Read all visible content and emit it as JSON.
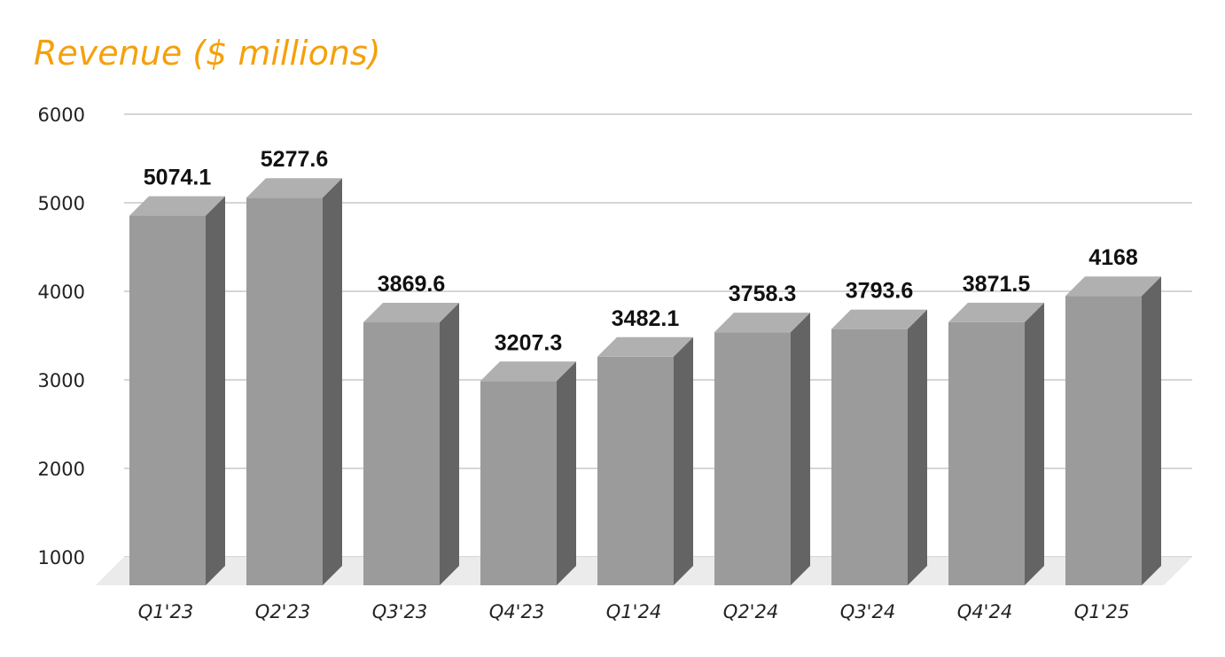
{
  "chart_data": {
    "type": "bar",
    "title": "Revenue ($ millions)",
    "xlabel": "",
    "ylabel": "",
    "categories": [
      "Q1'23",
      "Q2'23",
      "Q3'23",
      "Q4'23",
      "Q1'24",
      "Q2'24",
      "Q3'24",
      "Q4'24",
      "Q1'25"
    ],
    "values": [
      5074.1,
      5277.6,
      3869.6,
      3207.3,
      3482.1,
      3758.3,
      3793.6,
      3871.5,
      4168
    ],
    "value_labels": [
      "5074.1",
      "5277.6",
      "3869.6",
      "3207.3",
      "3482.1",
      "3758.3",
      "3793.6",
      "3871.5",
      "4168"
    ],
    "yticks": [
      1000,
      2000,
      3000,
      4000,
      5000,
      6000
    ],
    "ylim": [
      1000,
      6000
    ],
    "grid": true,
    "legend": "none",
    "style": "3d-columns",
    "colors": {
      "title": "#f5a00b",
      "bar_front": "#9b9b9b",
      "bar_side": "#646464",
      "bar_top": "#b0b0b0",
      "grid": "#c8c8c8",
      "floor": "#ebebeb"
    }
  }
}
